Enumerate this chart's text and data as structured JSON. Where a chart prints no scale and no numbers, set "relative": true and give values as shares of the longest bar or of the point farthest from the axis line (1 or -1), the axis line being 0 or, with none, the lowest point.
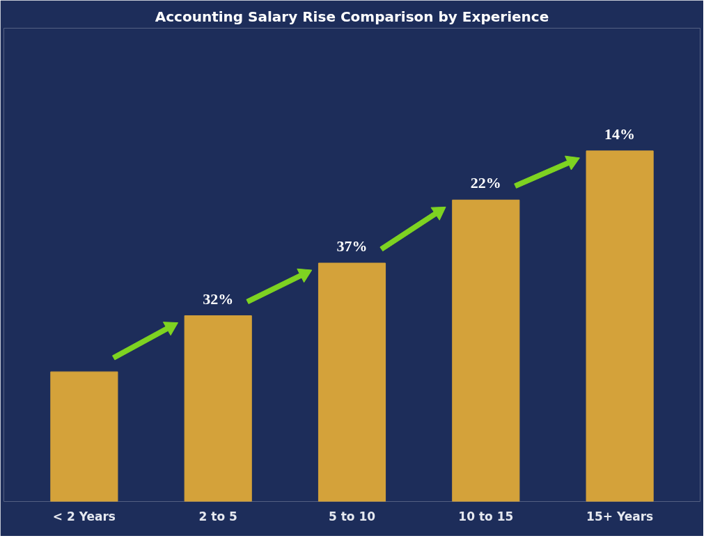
{
  "chart_data": {
    "type": "bar",
    "title": "Accounting Salary Rise Comparison by Experience",
    "categories": [
      "< 2 Years",
      "2 to 5",
      "5 to 10",
      "10 to 15",
      "15+ Years"
    ],
    "values": [
      0.37,
      0.53,
      0.68,
      0.86,
      1
    ],
    "annotations": [
      {
        "text": "32%",
        "x": "2 to 5",
        "y": 0.53
      },
      {
        "text": "37%",
        "x": "5 to 10",
        "y": 0.68
      },
      {
        "text": "22%",
        "x": "10 to 15",
        "y": 0.86
      },
      {
        "text": "14%",
        "x": "15+ Years",
        "y": 1
      }
    ],
    "color": "#d4a23a",
    "relative": true,
    "grid": false
  }
}
